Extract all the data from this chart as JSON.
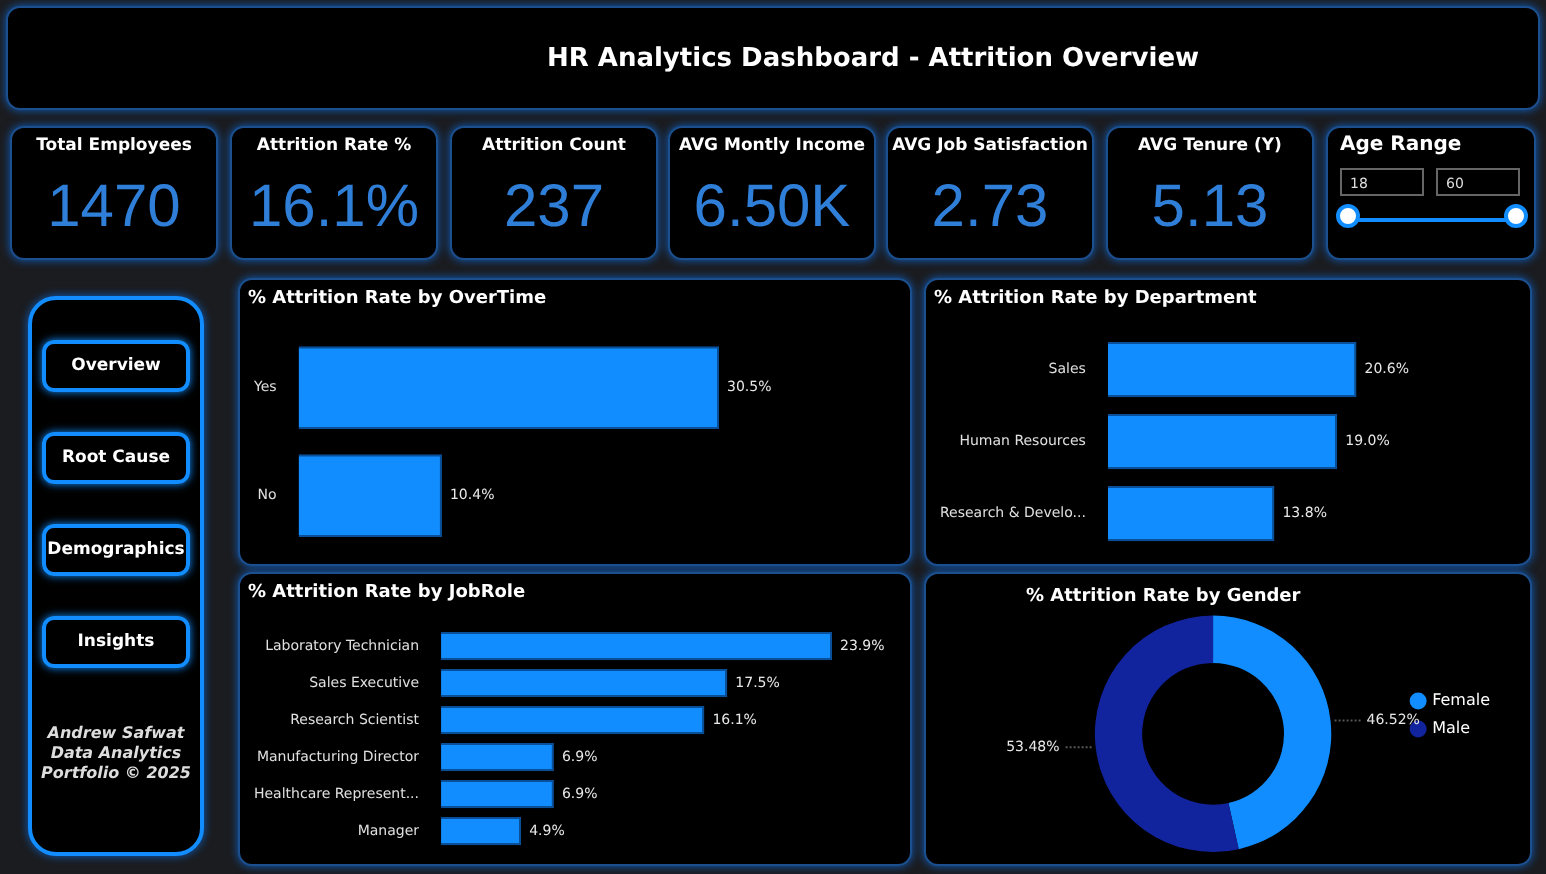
{
  "chart_data": [
    {
      "type": "other",
      "title": "HR Analytics Dashboard - Attrition Overview"
    },
    {
      "type": "other",
      "title": "Total Employees",
      "annotations": [
        "1470"
      ]
    },
    {
      "type": "other",
      "title": "Attrition Rate %",
      "annotations": [
        "16.1%"
      ]
    },
    {
      "type": "other",
      "title": "Attrition Count",
      "annotations": [
        "237"
      ]
    },
    {
      "type": "other",
      "title": "AVG Montly Income",
      "annotations": [
        "6.50K"
      ]
    },
    {
      "type": "other",
      "title": "AVG Job Satisfaction",
      "annotations": [
        "2.73"
      ]
    },
    {
      "type": "other",
      "title": "AVG Tenure (Y)",
      "annotations": [
        "5.13"
      ]
    },
    {
      "type": "other",
      "title": "Age Range",
      "annotations": [
        "18",
        "60"
      ]
    },
    {
      "type": "other",
      "annotations": [
        "Overview",
        "Root Cause",
        "Demographics",
        "Insights"
      ]
    },
    {
      "type": "other",
      "annotations": [
        "Andrew Safwat Data Analytics Portfolio © 2025"
      ]
    },
    {
      "type": "bar",
      "orientation": "horizontal",
      "title": "% Attrition Rate by OverTime",
      "categories": [
        "Yes",
        "No"
      ],
      "values": [
        30.5,
        10.4
      ],
      "color": "#118dff",
      "value_labels": [
        "30.5%",
        "10.4%"
      ],
      "tick_labels": "y"
    },
    {
      "type": "bar",
      "orientation": "horizontal",
      "title": "% Attrition Rate by Department",
      "categories": [
        "Sales",
        "Human Resources",
        "Research & Develo..."
      ],
      "values": [
        20.6,
        19.0,
        13.8
      ],
      "color": "#118dff",
      "value_labels": [
        "20.6%",
        "19.0%",
        "13.8%"
      ],
      "tick_labels": "y"
    },
    {
      "type": "bar",
      "orientation": "horizontal",
      "title": "% Attrition Rate by JobRole",
      "categories": [
        "Laboratory Technician",
        "Sales Executive",
        "Research Scientist",
        "Manufacturing Director",
        "Healthcare Represent...",
        "Manager"
      ],
      "values": [
        23.9,
        17.5,
        16.1,
        6.9,
        6.9,
        4.9
      ],
      "color": "#118dff",
      "value_labels": [
        "23.9%",
        "17.5%",
        "16.1%",
        "6.9%",
        "6.9%",
        "4.9%"
      ],
      "tick_labels": "y"
    },
    {
      "type": "donut",
      "title": "% Attrition Rate by Gender",
      "categories": [
        "Female",
        "Male"
      ],
      "values": [
        46.52,
        53.48
      ],
      "colors": [
        "#118dff",
        "#12239e"
      ],
      "value_labels": [
        "46.52%",
        "53.48%"
      ],
      "legend": "right"
    }
  ]
}
